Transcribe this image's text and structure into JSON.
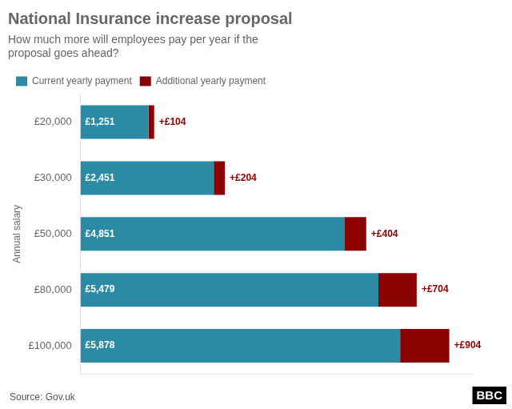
{
  "chart_data": {
    "type": "bar",
    "orientation": "horizontal",
    "stacked": true,
    "title": "National Insurance increase proposal",
    "subtitle": "How much more will employees pay per year if the\nproposal goes ahead?",
    "y_label": "Annual salary",
    "annotations": [
      "Source: Gov.uk",
      "BBC"
    ],
    "categories": [
      "£20,000",
      "£30,000",
      "£50,000",
      "£80,000",
      "£100,000"
    ],
    "series": [
      {
        "name": "Current yearly payment",
        "color": "#2B8BA5",
        "values": [
          1251,
          2451,
          4851,
          5479,
          5878
        ],
        "value_labels": [
          "£1,251",
          "£2,451",
          "£4,851",
          "£5,479",
          "£5,878"
        ]
      },
      {
        "name": "Additional yearly payment",
        "color": "#8B0000",
        "values": [
          104,
          204,
          404,
          704,
          904
        ],
        "value_labels": [
          "+£104",
          "+£204",
          "+£404",
          "+£704",
          "+£904"
        ]
      }
    ],
    "xlim": [
      0,
      7200
    ],
    "grid": false,
    "legend": "upper left",
    "data_labels": true,
    "tick_labels": "y"
  }
}
